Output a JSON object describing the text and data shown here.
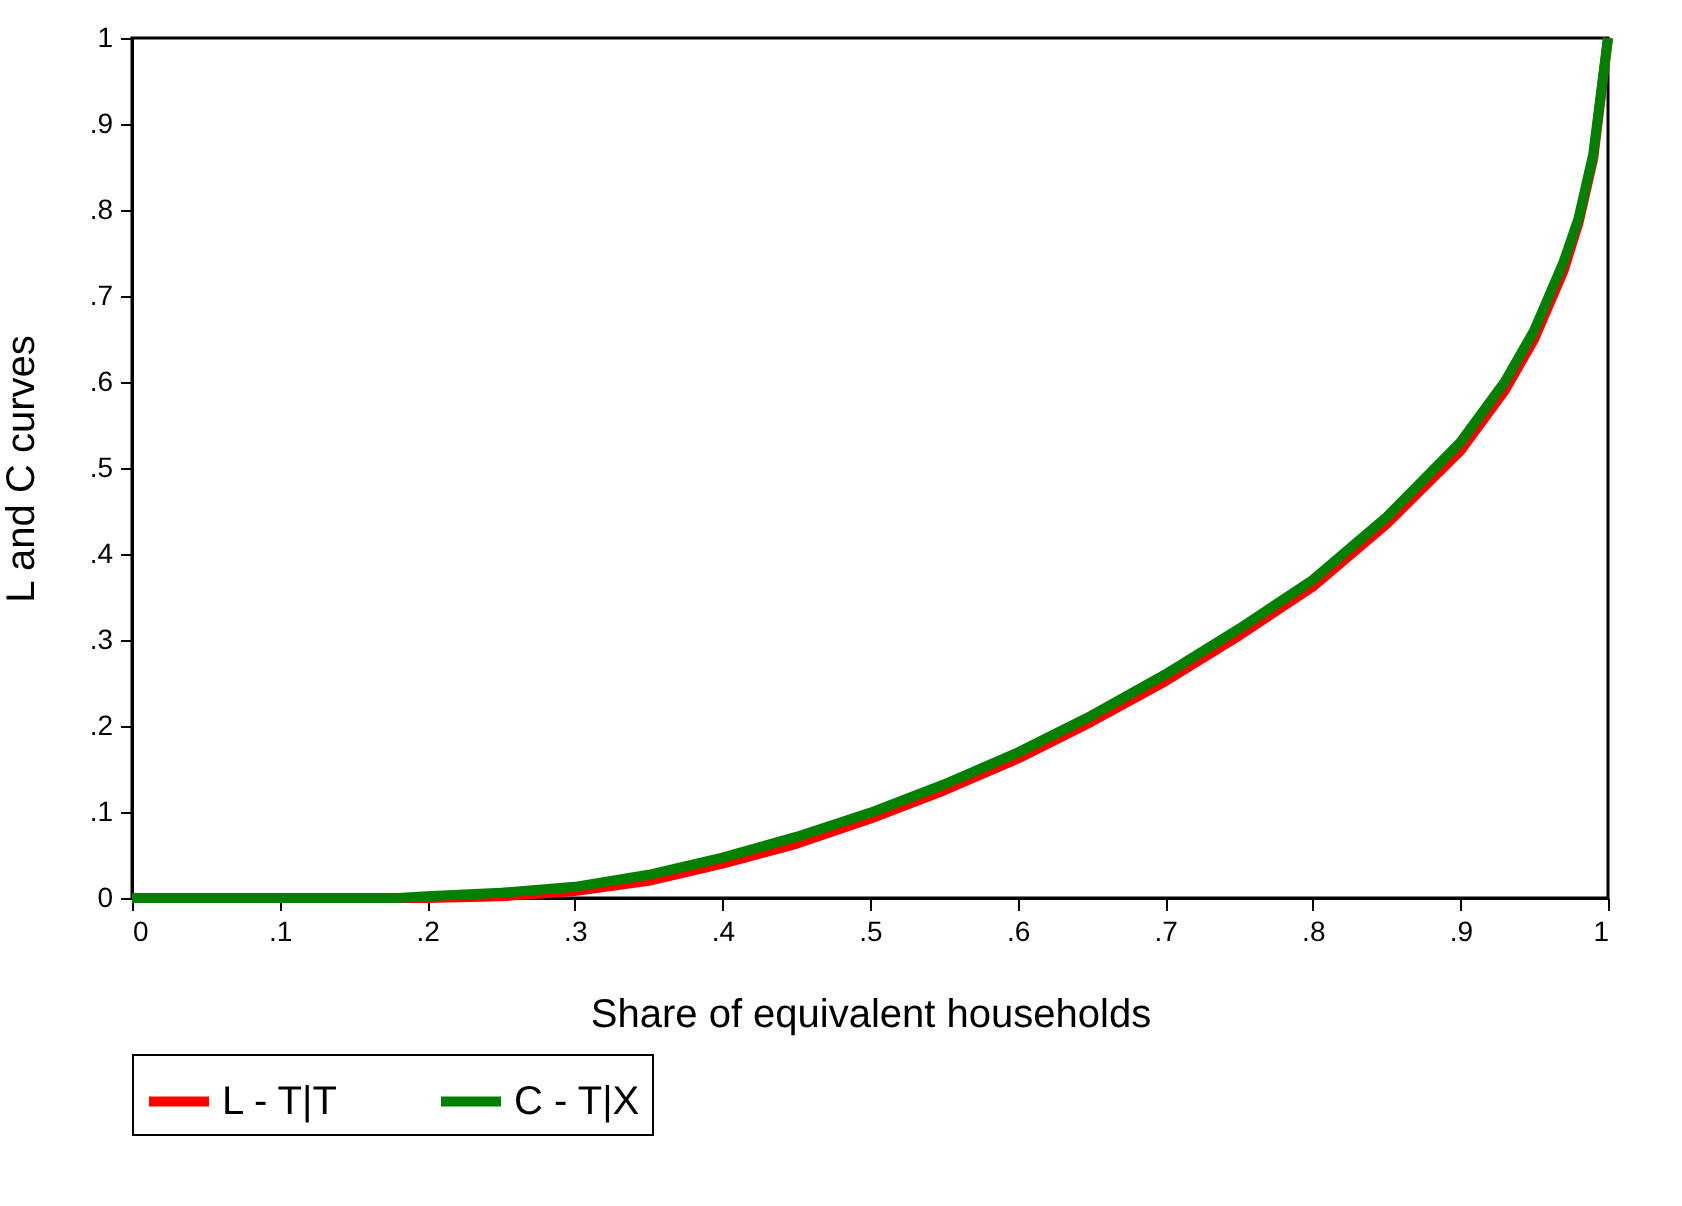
{
  "chart_data": {
    "type": "line",
    "xlabel": "Share of equivalent households",
    "ylabel": "L and C curves",
    "x": [
      0,
      0.1,
      0.18,
      0.2,
      0.25,
      0.3,
      0.35,
      0.4,
      0.45,
      0.5,
      0.55,
      0.6,
      0.65,
      0.7,
      0.75,
      0.8,
      0.85,
      0.9,
      0.93,
      0.95,
      0.97,
      0.98,
      0.99,
      1
    ],
    "series": [
      {
        "name": "L - T|T",
        "color": "#ff0000",
        "values": [
          0,
          0,
          0,
          0,
          0.002,
          0.008,
          0.02,
          0.04,
          0.063,
          0.092,
          0.125,
          0.162,
          0.205,
          0.252,
          0.305,
          0.362,
          0.435,
          0.52,
          0.59,
          0.65,
          0.73,
          0.785,
          0.86,
          1
        ]
      },
      {
        "name": "C - T|X",
        "color": "#008000",
        "values": [
          0,
          0,
          0,
          0.002,
          0.006,
          0.013,
          0.027,
          0.047,
          0.071,
          0.099,
          0.132,
          0.169,
          0.212,
          0.26,
          0.313,
          0.37,
          0.443,
          0.53,
          0.6,
          0.66,
          0.74,
          0.79,
          0.865,
          1
        ]
      }
    ],
    "xlim": [
      0,
      1
    ],
    "ylim": [
      0,
      1
    ],
    "xticks": [
      0,
      {
        "value": 0.1,
        "label": ".1"
      },
      {
        "value": 0.2,
        "label": ".2"
      },
      {
        "value": 0.3,
        "label": ".3"
      },
      {
        "value": 0.4,
        "label": ".4"
      },
      {
        "value": 0.5,
        "label": ".5"
      },
      {
        "value": 0.6,
        "label": ".6"
      },
      {
        "value": 0.7,
        "label": ".7"
      },
      {
        "value": 0.8,
        "label": ".8"
      },
      {
        "value": 0.9,
        "label": ".9"
      },
      1
    ],
    "yticks": [
      0,
      {
        "value": 0.1,
        "label": ".1"
      },
      {
        "value": 0.2,
        "label": ".2"
      },
      {
        "value": 0.3,
        "label": ".3"
      },
      {
        "value": 0.4,
        "label": ".4"
      },
      {
        "value": 0.5,
        "label": ".5"
      },
      {
        "value": 0.6,
        "label": ".6"
      },
      {
        "value": 0.7,
        "label": ".7"
      },
      {
        "value": 0.8,
        "label": ".8"
      },
      {
        "value": 0.9,
        "label": ".9"
      },
      1
    ],
    "legend": "bottom",
    "grid": false,
    "marker": "none",
    "line_style": "solid"
  }
}
